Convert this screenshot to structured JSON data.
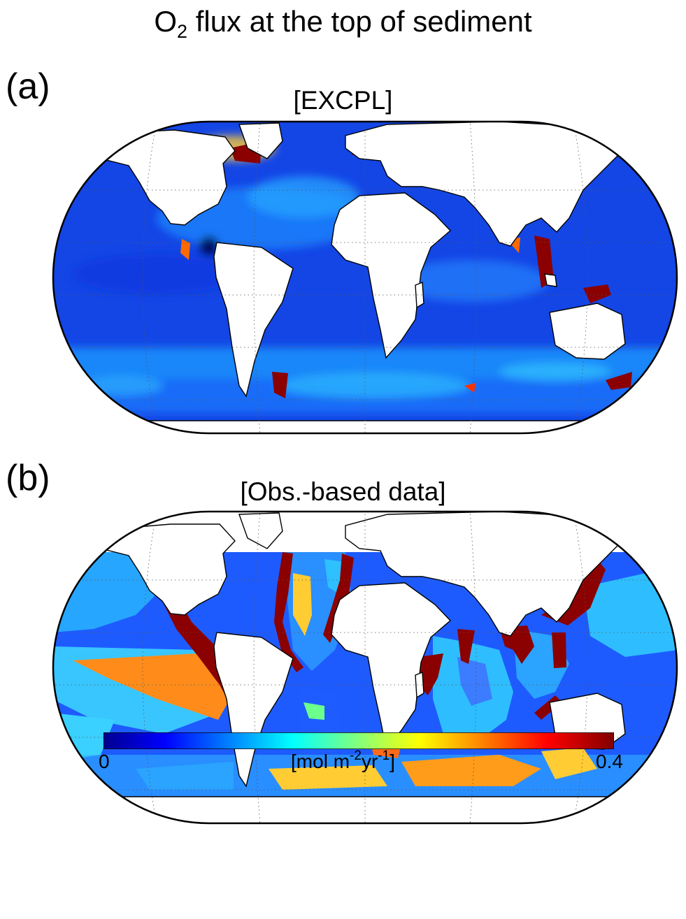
{
  "figure": {
    "title_prefix": "O",
    "title_subscript": "2",
    "title_rest": " flux at the top of sediment"
  },
  "panels": [
    {
      "label": "(a)",
      "subtitle": "[EXCPL]"
    },
    {
      "label": "(b)",
      "subtitle": "[Obs.-based data]"
    }
  ],
  "colorbar": {
    "min_label": "0",
    "max_label": "0.4",
    "unit_parts": [
      "[mol m",
      "-2",
      "yr",
      "-1",
      "]"
    ],
    "colormap": "jet",
    "colors": [
      "#00008f",
      "#0000ff",
      "#00ffff",
      "#ffff00",
      "#ff0000",
      "#800000"
    ]
  },
  "map": {
    "projection": "Robinson",
    "land_color": "#ffffff",
    "coastline_color": "#000000",
    "graticule": "dotted",
    "ocean_background": "#1446e6"
  }
}
